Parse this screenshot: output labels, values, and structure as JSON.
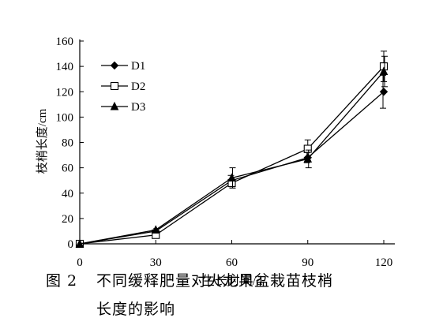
{
  "chart_data": {
    "type": "line",
    "x": [
      0,
      30,
      60,
      90,
      120
    ],
    "series": [
      {
        "name": "D1",
        "marker": "diamond",
        "values": [
          0,
          10,
          50,
          68,
          120
        ],
        "error": [
          0,
          1,
          4,
          4,
          13
        ]
      },
      {
        "name": "D2",
        "marker": "square",
        "values": [
          0,
          7,
          48,
          75,
          140
        ],
        "error": [
          0,
          1,
          3,
          7,
          12
        ]
      },
      {
        "name": "D3",
        "marker": "triangle",
        "values": [
          0,
          11,
          52,
          67,
          136
        ],
        "error": [
          0,
          1,
          8,
          7,
          12
        ]
      }
    ],
    "xlabel": "生长时间/d",
    "ylabel": "枝梢长度/cm",
    "xticks": [
      "0",
      "30",
      "60",
      "90",
      "120"
    ],
    "yticks": [
      "0",
      "20",
      "40",
      "60",
      "80",
      "100",
      "120",
      "140",
      "160"
    ],
    "xlim": [
      0,
      120
    ],
    "ylim": [
      0,
      160
    ],
    "legend_position": "top-left",
    "grid": false,
    "line_color": "#000000"
  },
  "caption": {
    "number": "图 2",
    "line1": "不同缓释肥量对火龙果盆栽苗枝梢",
    "line2": "长度的影响"
  }
}
